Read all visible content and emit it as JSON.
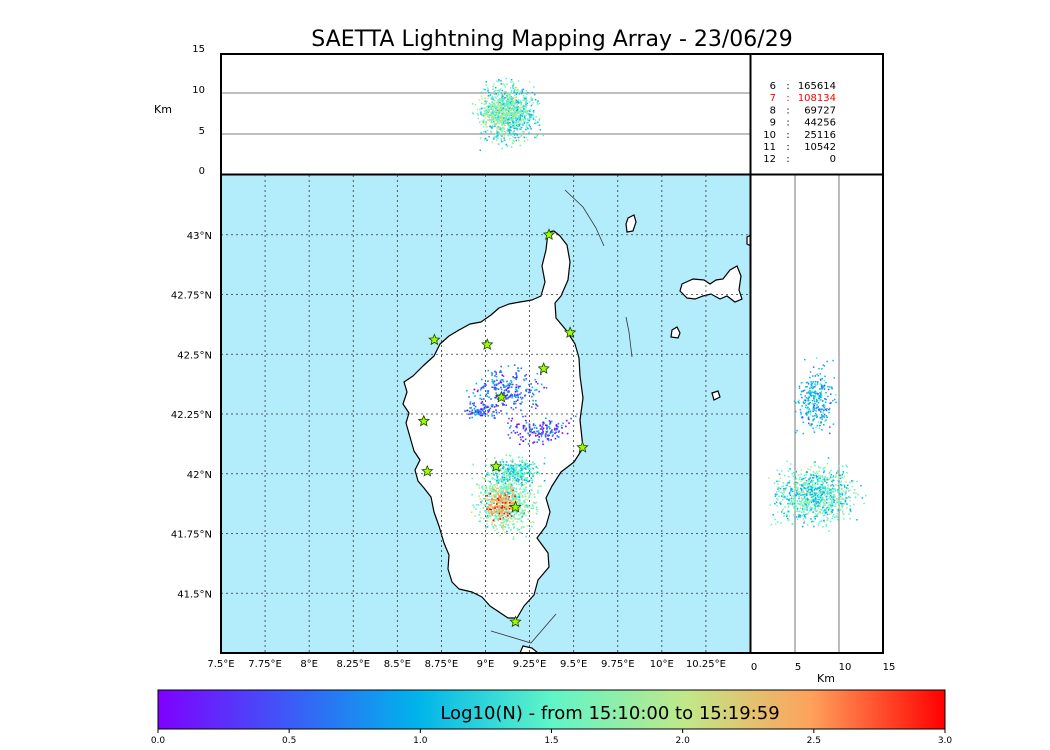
{
  "title": "SAETTA Lightning Mapping Array - 23/06/29",
  "map": {
    "lon_ticks": [
      "7.5°E",
      "7.75°E",
      "8°E",
      "8.25°E",
      "8.5°E",
      "8.75°E",
      "9°E",
      "9.25°E",
      "9.5°E",
      "9.75°E",
      "10°E",
      "10.25°E"
    ],
    "lat_ticks": [
      "43°N",
      "42.75°N",
      "42.5°N",
      "42.25°N",
      "42°N",
      "41.75°N",
      "41.5°N"
    ],
    "colors": {
      "sea": "#b3ecfb",
      "land": "#ffffff",
      "station": "#99ff00"
    }
  },
  "top_panel": {
    "ylabel": "Km",
    "yticks": [
      "15",
      "10",
      "5",
      "0"
    ]
  },
  "side_panel": {
    "xlabel": "Km",
    "xticks": [
      "0",
      "5",
      "10",
      "15"
    ]
  },
  "counts": [
    {
      "label": "6",
      "sep": ":",
      "value": "165614",
      "color": "#000000"
    },
    {
      "label": "7",
      "sep": ":",
      "value": "108134",
      "color": "#ff0000"
    },
    {
      "label": "8",
      "sep": ":",
      "value": "69727",
      "color": "#000000"
    },
    {
      "label": "9",
      "sep": ":",
      "value": "44256",
      "color": "#000000"
    },
    {
      "label": "10",
      "sep": ":",
      "value": "25116",
      "color": "#000000"
    },
    {
      "label": "11",
      "sep": ":",
      "value": "10542",
      "color": "#000000"
    },
    {
      "label": "12",
      "sep": ":",
      "value": "0",
      "color": "#000000"
    }
  ],
  "colorbar": {
    "label": "Log10(N) - from 15:10:00 to 15:19:59",
    "ticks": [
      "0.0",
      "0.5",
      "1.0",
      "1.5",
      "2.0",
      "2.5",
      "3.0"
    ],
    "range": [
      0,
      3
    ]
  },
  "chart_data": {
    "type": "scatter",
    "title": "SAETTA Lightning Mapping Array - 23/06/29",
    "xlabel": "",
    "ylabel": "",
    "xlim": [
      7.5,
      10.5
    ],
    "ylim": [
      41.25,
      43.25
    ],
    "stations": [
      [
        9.36,
        43.0
      ],
      [
        8.71,
        42.56
      ],
      [
        9.01,
        42.54
      ],
      [
        9.48,
        42.59
      ],
      [
        9.33,
        42.44
      ],
      [
        9.09,
        42.32
      ],
      [
        8.65,
        42.22
      ],
      [
        9.55,
        42.11
      ],
      [
        9.06,
        42.03
      ],
      [
        8.67,
        42.01
      ],
      [
        9.17,
        41.86
      ],
      [
        9.17,
        41.38
      ]
    ]
  }
}
